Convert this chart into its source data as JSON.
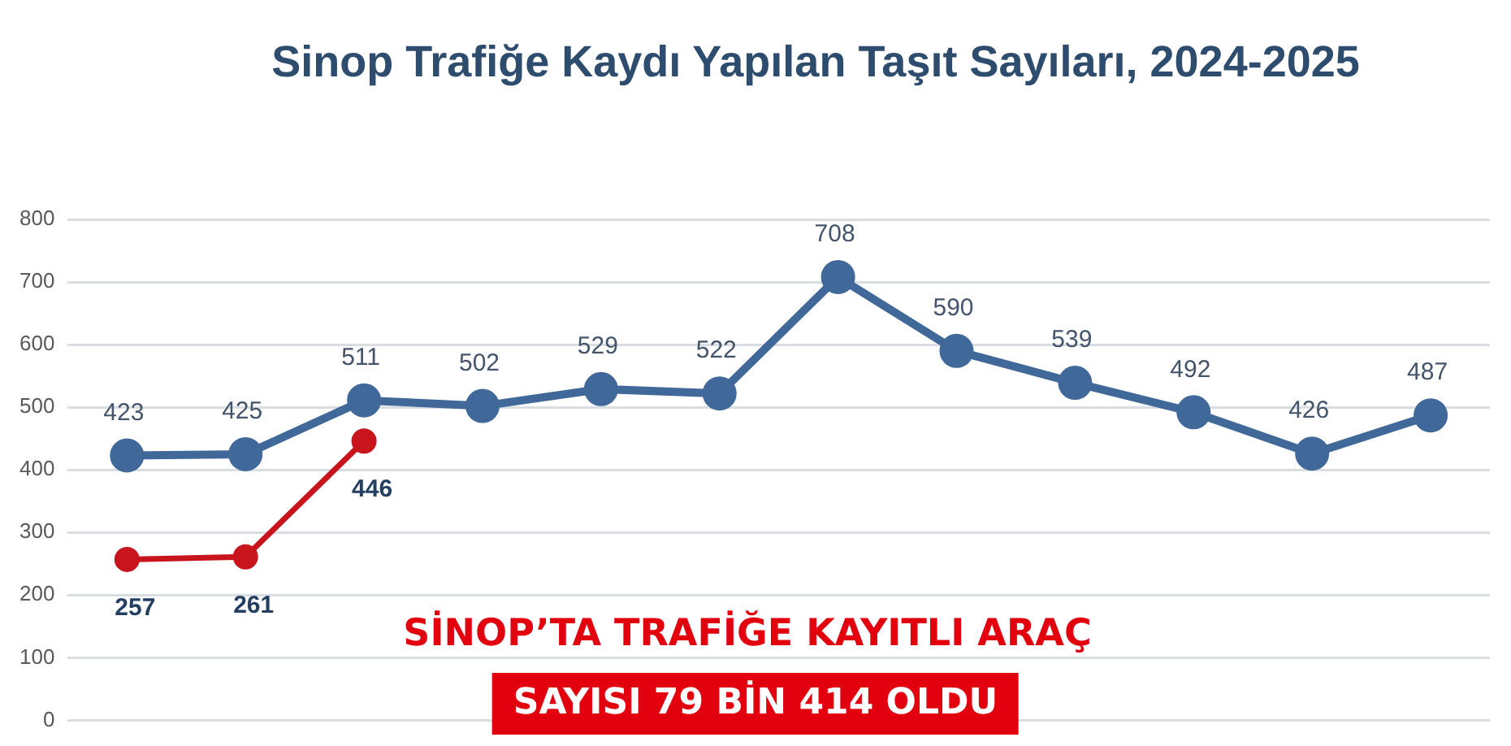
{
  "chart_data": {
    "type": "line",
    "title": "Sinop Trafiğe Kaydı Yapılan Taşıt Sayıları, 2024-2025",
    "categories": [
      null,
      null,
      null,
      null,
      null,
      null,
      null,
      null,
      null,
      null,
      null,
      null
    ],
    "series": [
      {
        "color": "#40699a",
        "values": [
          423,
          425,
          511,
          502,
          529,
          522,
          708,
          590,
          539,
          492,
          426,
          487
        ]
      },
      {
        "color": "#c8141c",
        "values": [
          257,
          261,
          446,
          null,
          null,
          null,
          null,
          null,
          null,
          null,
          null,
          null
        ]
      }
    ],
    "ylim": [
      0,
      800
    ],
    "yticks": [
      0,
      100,
      200,
      300,
      400,
      500,
      600,
      700,
      800
    ],
    "grid": "y",
    "marker": "circle",
    "line_style": "solid",
    "data_labels": true,
    "annotations": [
      "SİNOP’TA TRAFİĞE KAYITLI ARAÇ",
      "SAYISI 79 BİN 414 OLDU"
    ]
  }
}
